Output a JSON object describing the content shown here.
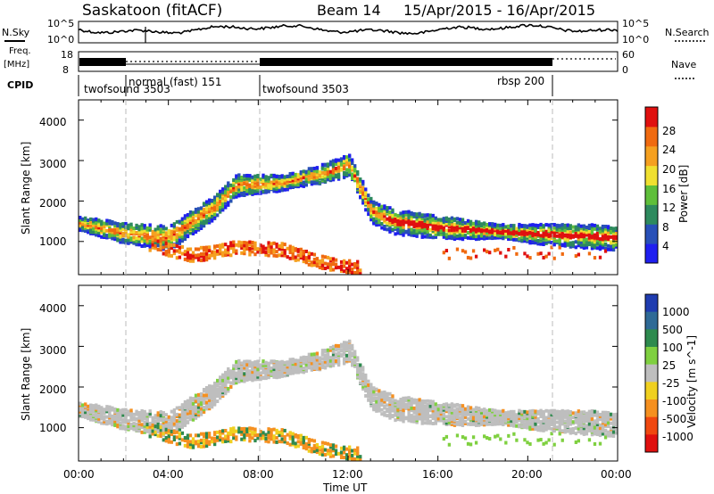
{
  "header": {
    "station": "Saskatoon (fitACF)",
    "beam": "Beam 14",
    "dates": "15/Apr/2015 - 16/Apr/2015"
  },
  "top_panel": {
    "nsky_label": "N.Sky",
    "nsky_ticks": [
      "10^5",
      "10^0"
    ],
    "nsearch_label": "N.Search",
    "nsearch_ticks": [
      "10^5",
      "10^0"
    ],
    "freq_label_1": "Freq.",
    "freq_label_2": "[MHz]",
    "freq_ticks": [
      "18",
      "8"
    ],
    "nave_label": "Nave",
    "nave_ticks": [
      "60",
      "0"
    ],
    "cpid_label": "CPID",
    "cpid_segments": [
      {
        "label": "twofsound 3503",
        "start_hour": 0
      },
      {
        "label": "normal (fast) 151",
        "start_hour": 2
      },
      {
        "label": "twofsound 3503",
        "start_hour": 8
      },
      {
        "label": "rbsp 200",
        "start_hour": 21
      }
    ]
  },
  "axes": {
    "x_ticks": [
      "00:00",
      "04:00",
      "08:00",
      "12:00",
      "16:00",
      "20:00",
      "00:00"
    ],
    "x_label": "Time UT",
    "y_label": "Slant Range [km]",
    "y_ticks": [
      "1000",
      "2000",
      "3000",
      "4000"
    ]
  },
  "power_scale": {
    "label": "Power [dB]",
    "ticks": [
      "4",
      "8",
      "12",
      "16",
      "20",
      "24",
      "28"
    ],
    "colors": [
      "#1f1ff0",
      "#2850b8",
      "#2e8a5e",
      "#5fbf3a",
      "#f0e030",
      "#f5a020",
      "#f06a10",
      "#e0100f"
    ]
  },
  "velocity_scale": {
    "label": "Velocity [m s^-1]",
    "ticks": [
      "1000",
      "500",
      "100",
      "25",
      "-25",
      "-100",
      "-500",
      "-1000"
    ],
    "colors": [
      "#1f3cb0",
      "#2f6a96",
      "#2e8a4e",
      "#7fd040",
      "#bebebe",
      "#f0d020",
      "#f59020",
      "#f04810",
      "#e0100f"
    ]
  },
  "chart_data": [
    {
      "type": "line",
      "title": "Saskatoon (fitACF) Beam 14 15/Apr/2015 - 16/Apr/2015",
      "xlabel": "Time UT",
      "ylabel": "N.Sky",
      "x": [
        0,
        2,
        3,
        6,
        8,
        12,
        16,
        20,
        24
      ],
      "y_scale": "log",
      "ylim": [
        "10^0",
        "10^5"
      ]
    },
    {
      "type": "heatmap",
      "title": "Power",
      "xlabel": "Time UT",
      "ylabel": "Slant Range [km]",
      "xlim": [
        0,
        24
      ],
      "ylim": [
        180,
        4500
      ],
      "colorbar_label": "Power [dB]",
      "colorbar_ticks": [
        4,
        8,
        12,
        16,
        20,
        24,
        28
      ],
      "echo_bands": [
        {
          "name": "main",
          "x": [
            0,
            2,
            4,
            6,
            7,
            9,
            11,
            12,
            13,
            14,
            16,
            20,
            24
          ],
          "y": [
            1500,
            1250,
            1150,
            1900,
            2450,
            2500,
            2750,
            2950,
            1800,
            1550,
            1400,
            1250,
            1150
          ]
        },
        {
          "name": "near",
          "x": [
            3,
            5,
            7,
            9,
            11,
            12.5
          ],
          "y": [
            1000,
            700,
            900,
            850,
            500,
            400
          ]
        }
      ]
    },
    {
      "type": "heatmap",
      "title": "Velocity",
      "xlabel": "Time UT",
      "ylabel": "Slant Range [km]",
      "xlim": [
        0,
        24
      ],
      "ylim": [
        180,
        4500
      ],
      "colorbar_label": "Velocity [m s^-1]",
      "colorbar_ticks": [
        1000,
        500,
        100,
        25,
        -25,
        -100,
        -500,
        -1000
      ]
    }
  ]
}
